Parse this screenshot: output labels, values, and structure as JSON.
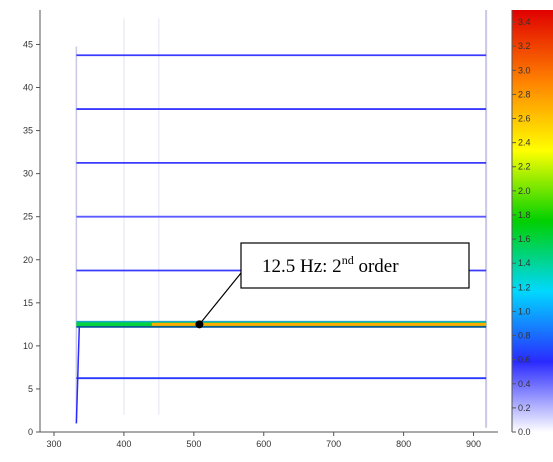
{
  "chart_data": {
    "type": "heatmap",
    "title": "",
    "xlabel": "",
    "ylabel": "",
    "xlim": [
      280,
      935
    ],
    "ylim": [
      0,
      49
    ],
    "x_ticks": [
      300,
      400,
      500,
      600,
      700,
      800,
      900
    ],
    "y_ticks": [
      0,
      5,
      10,
      15,
      20,
      25,
      30,
      35,
      40,
      45
    ],
    "x_start": 332,
    "x_end": 918,
    "bands": [
      {
        "y": 6.25,
        "intensity": 0.35
      },
      {
        "y": 12.5,
        "intensity": 3.2
      },
      {
        "y": 18.75,
        "intensity": 0.3
      },
      {
        "y": 25.0,
        "intensity": 0.25
      },
      {
        "y": 31.25,
        "intensity": 0.3
      },
      {
        "y": 37.5,
        "intensity": 0.3
      },
      {
        "y": 43.75,
        "intensity": 0.3
      }
    ],
    "colorbar": {
      "ticks": [
        0.0,
        0.2,
        0.4,
        0.6,
        0.8,
        1.0,
        1.2,
        1.4,
        1.6,
        1.8,
        2.0,
        2.2,
        2.4,
        2.6,
        2.8,
        3.0,
        3.2,
        3.4
      ],
      "range": [
        0,
        3.5
      ],
      "colors": [
        "#ffffff",
        "#2a2aff",
        "#00d8ff",
        "#00d000",
        "#ffff00",
        "#ff8000",
        "#e00000"
      ]
    },
    "annotation": {
      "text": "12.5 Hz: 2",
      "superscript": "nd",
      "suffix": " order",
      "point": {
        "x": 508,
        "y": 12.5
      }
    }
  }
}
